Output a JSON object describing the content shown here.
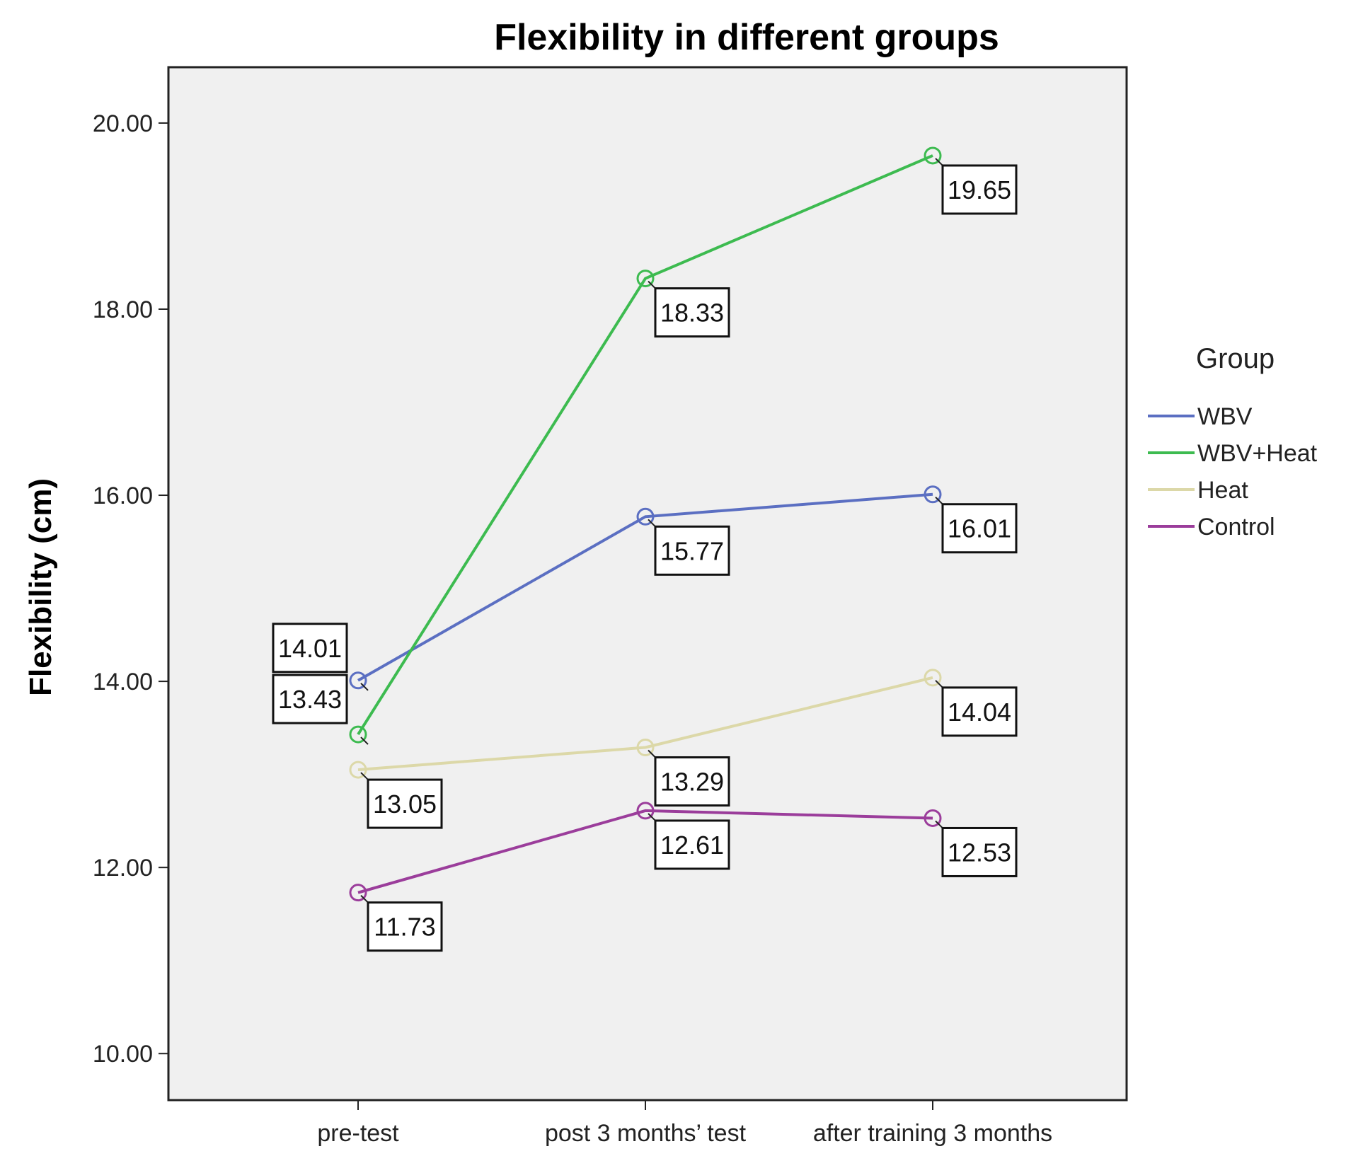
{
  "chart_data": {
    "type": "line",
    "title": "Flexibility in different groups",
    "xlabel": "",
    "ylabel": "Flexibility (cm)",
    "ylim": [
      9.5,
      20.6
    ],
    "yticks": [
      10,
      12,
      14,
      16,
      18,
      20
    ],
    "ytick_labels": [
      "10.00",
      "12.00",
      "14.00",
      "16.00",
      "18.00",
      "20.00"
    ],
    "categories": [
      "pre-test",
      "post 3 months’ test",
      "after training 3 months"
    ],
    "grid": false,
    "legend": {
      "title": "Group",
      "position": "right"
    },
    "series": [
      {
        "name": "WBV",
        "color": "#5b6fc2",
        "values": [
          14.01,
          15.77,
          16.01
        ],
        "labels": [
          "14.01",
          "15.77",
          "16.01"
        ]
      },
      {
        "name": "WBV+Heat",
        "color": "#3dbb50",
        "values": [
          13.43,
          18.33,
          19.65
        ],
        "labels": [
          "13.43",
          "18.33",
          "19.65"
        ]
      },
      {
        "name": "Heat",
        "color": "#dcd8a8",
        "values": [
          13.05,
          13.29,
          14.04
        ],
        "labels": [
          "13.05",
          "13.29",
          "14.04"
        ]
      },
      {
        "name": "Control",
        "color": "#9b3d9b",
        "values": [
          11.73,
          12.61,
          12.53
        ],
        "labels": [
          "11.73",
          "12.61",
          "12.53"
        ]
      }
    ]
  }
}
